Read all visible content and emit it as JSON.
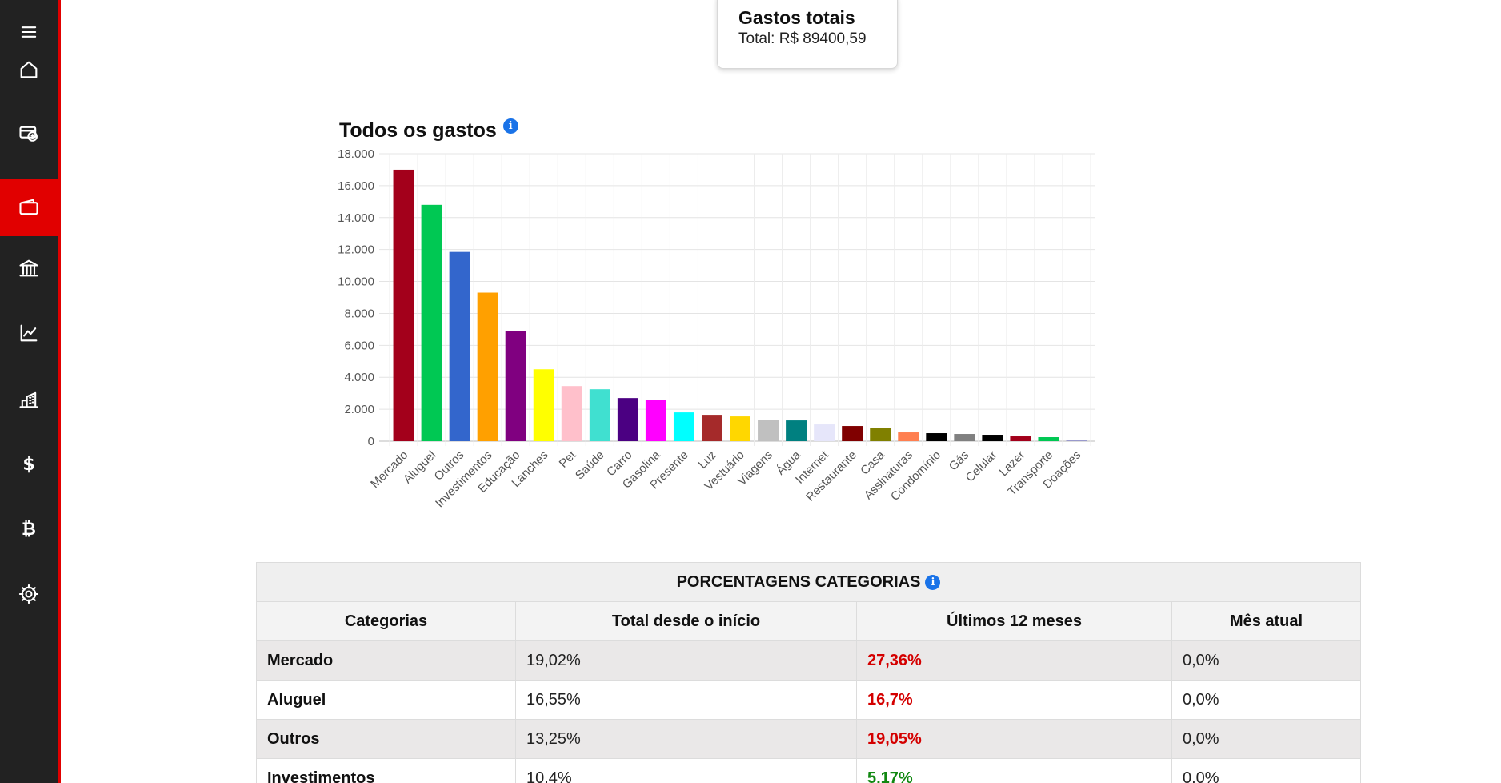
{
  "sidebar": {
    "items": [
      {
        "icon": "menu-icon"
      },
      {
        "icon": "home-icon"
      },
      {
        "icon": "money-transfer-icon"
      },
      {
        "icon": "wallet-icon",
        "active": true
      },
      {
        "icon": "bank-icon"
      },
      {
        "icon": "chart-line-icon"
      },
      {
        "icon": "buildings-icon"
      },
      {
        "icon": "dollar-icon",
        "glyph": "$"
      },
      {
        "icon": "bitcoin-icon",
        "glyph": "₿"
      },
      {
        "icon": "gear-icon"
      }
    ],
    "accent": "#e10000",
    "background": "#222222"
  },
  "summary": {
    "title": "Gastos totais",
    "total_text": "Total: R$ 89400,59"
  },
  "chart": {
    "title": "Todos os gastos",
    "info_icon": "i"
  },
  "chart_data": {
    "type": "bar",
    "title": "Todos os gastos",
    "xlabel": "",
    "ylabel": "",
    "ylim": [
      0,
      18000
    ],
    "yticks": [
      "0",
      "2.000",
      "4.000",
      "6.000",
      "8.000",
      "10.000",
      "12.000",
      "14.000",
      "16.000",
      "18.000"
    ],
    "grid": true,
    "categories": [
      "Mercado",
      "Aluguel",
      "Outros",
      "Investimentos",
      "Educação",
      "Lanches",
      "Pet",
      "Saúde",
      "Carro",
      "Gasolina",
      "Presente",
      "Luz",
      "Vestuário",
      "Viagens",
      "Água",
      "Internet",
      "Restaurante",
      "Casa",
      "Assinaturas",
      "Condomínio",
      "Gás",
      "Celular",
      "Lazer",
      "Transporte",
      "Doações"
    ],
    "values": [
      17000,
      14800,
      11850,
      9300,
      6900,
      4500,
      3450,
      3250,
      2700,
      2600,
      1800,
      1650,
      1550,
      1350,
      1300,
      1050,
      950,
      850,
      550,
      500,
      450,
      400,
      300,
      250,
      50
    ],
    "colors": [
      "#a3001b",
      "#00c853",
      "#3366cc",
      "#ffa000",
      "#800080",
      "#ffff00",
      "#ffc0cb",
      "#40e0d0",
      "#4b0082",
      "#ff00ff",
      "#00ffff",
      "#a52a2a",
      "#ffd700",
      "#c0c0c0",
      "#008080",
      "#e6e6fa",
      "#800000",
      "#808000",
      "#ff7f50",
      "#000000",
      "#808080",
      "#000000",
      "#a3001b",
      "#00c853",
      "#9999cc"
    ]
  },
  "table": {
    "caption": "PORCENTAGENS CATEGORIAS",
    "headers": [
      "Categorias",
      "Total desde o início",
      "Últimos 12 meses",
      "Mês atual"
    ],
    "rows": [
      {
        "category": "Mercado",
        "total": "19,02%",
        "last12": "27,36%",
        "last12_status": "neg",
        "current": "0,0%"
      },
      {
        "category": "Aluguel",
        "total": "16,55%",
        "last12": "16,7%",
        "last12_status": "neg",
        "current": "0,0%"
      },
      {
        "category": "Outros",
        "total": "13,25%",
        "last12": "19,05%",
        "last12_status": "neg",
        "current": "0,0%"
      },
      {
        "category": "Investimentos",
        "total": "10,4%",
        "last12": "5,17%",
        "last12_status": "pos",
        "current": "0,0%"
      }
    ],
    "status_colors": {
      "neg": "#d40000",
      "pos": "#118811"
    }
  }
}
